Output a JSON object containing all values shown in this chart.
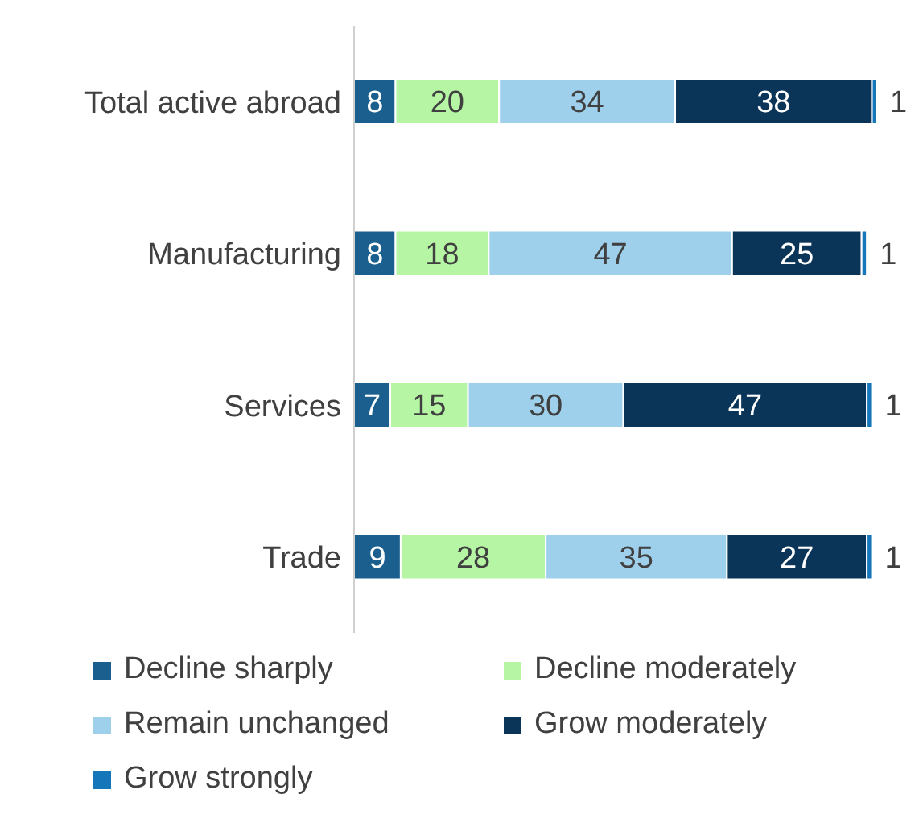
{
  "chart_data": {
    "type": "bar",
    "orientation": "horizontal",
    "stacked": true,
    "data_labels": true,
    "legend": "bottom",
    "categories": [
      "Total active abroad",
      "Manufacturing",
      "Services",
      "Trade"
    ],
    "series": [
      {
        "name": "Decline sharply",
        "color": "#1b5f8f",
        "values": [
          8,
          8,
          7,
          9
        ]
      },
      {
        "name": "Decline moderately",
        "color": "#b6f5a4",
        "values": [
          20,
          18,
          15,
          28
        ]
      },
      {
        "name": "Remain unchanged",
        "color": "#9ed0ec",
        "values": [
          34,
          47,
          30,
          35
        ]
      },
      {
        "name": "Grow moderately",
        "color": "#0b3558",
        "values": [
          38,
          25,
          47,
          27
        ]
      },
      {
        "name": "Grow strongly",
        "color": "#1577b9",
        "values": [
          1,
          1,
          1,
          1
        ]
      }
    ]
  }
}
